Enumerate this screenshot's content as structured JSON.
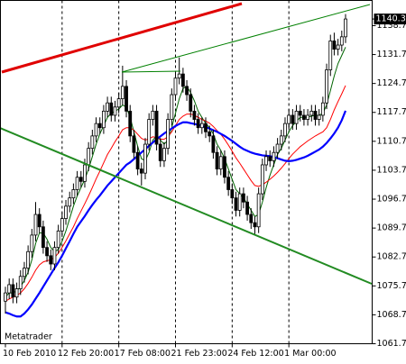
{
  "chart_data": {
    "type": "candlestick",
    "watermark": "Metatrader",
    "categories": [
      "10 Feb 2010",
      null,
      null,
      null,
      null,
      null,
      null,
      null,
      null,
      null,
      null,
      null,
      null,
      null,
      null,
      "12 Feb 20:00",
      null,
      null,
      null,
      null,
      null,
      null,
      null,
      null,
      null,
      null,
      null,
      null,
      null,
      null,
      "17 Feb 08:00",
      null,
      null,
      null,
      null,
      null,
      null,
      null,
      null,
      null,
      null,
      null,
      null,
      null,
      null,
      "21 Feb 23:00",
      null,
      null,
      null,
      null,
      null,
      null,
      null,
      null,
      null,
      null,
      null,
      null,
      null,
      null,
      "24 Feb 12:00",
      null,
      null,
      null,
      null,
      null,
      null,
      null,
      null,
      null,
      null,
      null,
      null,
      null,
      null,
      "1 Mar 00:00",
      null,
      null,
      null,
      null,
      null,
      null,
      null,
      null,
      null,
      null,
      null,
      null,
      null,
      null,
      null
    ],
    "open": [
      1072,
      1074,
      1076,
      1073,
      1075,
      1078,
      1080,
      1084,
      1088,
      1093,
      1090,
      1085,
      1083,
      1081,
      1085,
      1089,
      1092,
      1095,
      1097,
      1099,
      1102,
      1101,
      1105,
      1109,
      1112,
      1115,
      1114,
      1118,
      1120,
      1117,
      1119,
      1121,
      1124,
      1118,
      1112,
      1108,
      1104,
      1103,
      1110,
      1116,
      1118,
      1110,
      1106,
      1109,
      1116,
      1122,
      1126,
      1127,
      1124,
      1122,
      1118,
      1116,
      1114,
      1115,
      1113,
      1112,
      1108,
      1104,
      1107,
      1102,
      1099,
      1097,
      1094,
      1098,
      1096,
      1093,
      1091,
      1090,
      1098,
      1105,
      1107,
      1106,
      1108,
      1110,
      1112,
      1115,
      1117,
      1115,
      1118,
      1117,
      1116,
      1117,
      1118,
      1116,
      1117,
      1120,
      1128,
      1135,
      1133,
      1134,
      1136
    ],
    "high": [
      1075.5,
      1077.5,
      1077.5,
      1076.5,
      1079.5,
      1081.5,
      1085.5,
      1089.5,
      1096,
      1094.5,
      1091.5,
      1086.5,
      1084.5,
      1086.5,
      1090.5,
      1093.5,
      1096.5,
      1098.5,
      1100.5,
      1103.5,
      1103.5,
      1106.5,
      1110.5,
      1113.5,
      1116.5,
      1116.5,
      1119.5,
      1121.5,
      1121.5,
      1120.5,
      1122.5,
      1129,
      1125.5,
      1119.5,
      1113.5,
      1109.5,
      1105.5,
      1111.5,
      1117.5,
      1119.5,
      1119.5,
      1111.5,
      1110.5,
      1117.5,
      1123.5,
      1127.5,
      1131,
      1128.5,
      1125.5,
      1123.5,
      1119.5,
      1117.5,
      1116.5,
      1116.5,
      1114.5,
      1113.5,
      1109.5,
      1108.5,
      1108.5,
      1103.5,
      1100.5,
      1098.5,
      1099.5,
      1099.5,
      1097.5,
      1094.5,
      1092.5,
      1099.5,
      1106.5,
      1108.5,
      1108.5,
      1109.5,
      1111.5,
      1113.5,
      1116.5,
      1118.5,
      1118.5,
      1119.5,
      1119.5,
      1118.5,
      1118.5,
      1119.5,
      1119.5,
      1118.5,
      1121.5,
      1129.5,
      1136.5,
      1137,
      1135.5,
      1137.5,
      1141.5
    ],
    "low": [
      1069,
      1072.5,
      1071.5,
      1071.5,
      1073.5,
      1076.5,
      1078.5,
      1082.5,
      1086.5,
      1088.5,
      1083.5,
      1081.5,
      1079.5,
      1079.5,
      1083.5,
      1087.5,
      1090.5,
      1093.5,
      1095.5,
      1097.5,
      1099.5,
      1099.5,
      1103.5,
      1107.5,
      1110.5,
      1112.5,
      1112.5,
      1116.5,
      1115.5,
      1115.5,
      1117.5,
      1119.5,
      1116.5,
      1110.5,
      1106.5,
      1102.5,
      1100,
      1101.5,
      1108.5,
      1114.5,
      1108.5,
      1104.5,
      1104.5,
      1107.5,
      1114.5,
      1120.5,
      1124.5,
      1122.5,
      1120.5,
      1116.5,
      1114.5,
      1112.5,
      1112.5,
      1111.5,
      1110.5,
      1106.5,
      1102.5,
      1102.5,
      1100.5,
      1097.5,
      1095.5,
      1092.5,
      1092.5,
      1094.5,
      1091.5,
      1089.5,
      1088,
      1088.5,
      1096.5,
      1103.5,
      1104.5,
      1104.5,
      1106.5,
      1108.5,
      1110.5,
      1113.5,
      1113.5,
      1113.5,
      1115.5,
      1114.5,
      1114.5,
      1115.5,
      1114.5,
      1114.5,
      1115.5,
      1118.5,
      1126.5,
      1131.5,
      1131.5,
      1132.5,
      1134.5
    ],
    "close": [
      1074,
      1076,
      1073,
      1075,
      1078,
      1080,
      1084,
      1088,
      1093,
      1090,
      1085,
      1083,
      1081,
      1085,
      1089,
      1092,
      1095,
      1097,
      1099,
      1102,
      1101,
      1105,
      1109,
      1112,
      1115,
      1114,
      1118,
      1120,
      1117,
      1119,
      1121,
      1124,
      1118,
      1112,
      1108,
      1104,
      1103,
      1110,
      1116,
      1118,
      1110,
      1106,
      1109,
      1116,
      1122,
      1126,
      1127,
      1124,
      1122,
      1118,
      1116,
      1114,
      1115,
      1113,
      1112,
      1108,
      1104,
      1107,
      1102,
      1099,
      1097,
      1094,
      1098,
      1096,
      1093,
      1091,
      1090,
      1098,
      1105,
      1107,
      1106,
      1108,
      1110,
      1112,
      1115,
      1117,
      1115,
      1118,
      1117,
      1116,
      1117,
      1118,
      1116,
      1117,
      1120,
      1128,
      1135,
      1133,
      1134,
      1136,
      1140.31
    ],
    "overlays": [
      {
        "color": "#006400",
        "width": 1,
        "values": [
          1073,
          1074,
          1074,
          1074.5,
          1075.5,
          1077,
          1079,
          1082,
          1086,
          1088.5,
          1088.5,
          1087,
          1085,
          1084,
          1084.5,
          1086.5,
          1089,
          1092,
          1095,
          1097.5,
          1099.5,
          1101.5,
          1104,
          1107,
          1110,
          1112.5,
          1114.5,
          1116.5,
          1117.5,
          1118,
          1118.5,
          1119.5,
          1119,
          1116.5,
          1113,
          1109.5,
          1106.5,
          1106,
          1108,
          1111,
          1112,
          1111,
          1110,
          1111,
          1114,
          1117.5,
          1121,
          1123.5,
          1124,
          1122.5,
          1120.5,
          1118,
          1116.5,
          1115,
          1114,
          1112.5,
          1110,
          1108.5,
          1106.5,
          1104,
          1101.5,
          1099,
          1098,
          1097,
          1095.5,
          1094,
          1092.5,
          1093,
          1096,
          1099.5,
          1102.5,
          1105,
          1107.5,
          1109,
          1111,
          1113,
          1114.5,
          1115.5,
          1116.5,
          1116.5,
          1116.5,
          1116.8,
          1117,
          1117,
          1117.5,
          1119.5,
          1123,
          1126.5,
          1129.5,
          1131.5,
          1133.5
        ]
      },
      {
        "color": "#ff0000",
        "width": 1,
        "values": [
          1072,
          1072.5,
          1073,
          1073.4,
          1074,
          1075,
          1076.3,
          1077.8,
          1079.5,
          1080.8,
          1081.5,
          1081.8,
          1082,
          1082.6,
          1083.6,
          1085,
          1086.6,
          1088.3,
          1090,
          1092,
          1093.8,
          1095.6,
          1097.5,
          1099.5,
          1101.6,
          1103.5,
          1105.5,
          1107.5,
          1109,
          1110.6,
          1112,
          1113.5,
          1114,
          1114,
          1113.4,
          1112.4,
          1111.4,
          1111,
          1111.3,
          1111.8,
          1111.6,
          1111.2,
          1111.2,
          1111.8,
          1113,
          1114.5,
          1116,
          1116.8,
          1117.3,
          1117.3,
          1117,
          1116.5,
          1116,
          1115.6,
          1115.1,
          1114.3,
          1113.3,
          1112.4,
          1111.2,
          1109.8,
          1108.3,
          1106.7,
          1105.4,
          1104,
          1102.6,
          1101.2,
          1100,
          1099.8,
          1100.2,
          1100.8,
          1101.5,
          1102.3,
          1103.2,
          1104.2,
          1105.3,
          1106.5,
          1107.6,
          1108.5,
          1109.4,
          1110.1,
          1110.8,
          1111.4,
          1112,
          1112.5,
          1113,
          1114,
          1116,
          1118.3,
          1120.3,
          1122.2,
          1124.2
        ]
      },
      {
        "color": "#0000ff",
        "width": 2.2,
        "values": [
          1069.3,
          1069,
          1068.6,
          1068.3,
          1068.3,
          1069,
          1070,
          1071.2,
          1072.6,
          1074,
          1075.5,
          1077,
          1078.5,
          1080,
          1081.4,
          1083,
          1084.8,
          1086.5,
          1088.3,
          1090,
          1091.3,
          1092.6,
          1094,
          1095.3,
          1096.5,
          1097.6,
          1098.8,
          1100,
          1101,
          1102,
          1103,
          1104,
          1105,
          1105.6,
          1106.4,
          1107.2,
          1108,
          1108.8,
          1109.6,
          1110.4,
          1111.2,
          1111.9,
          1112.6,
          1113.2,
          1113.8,
          1114.4,
          1114.9,
          1115.3,
          1115.3,
          1115.1,
          1114.9,
          1114.7,
          1114.4,
          1114.1,
          1113.8,
          1113.4,
          1113,
          1112.5,
          1112,
          1111.4,
          1110.8,
          1110.1,
          1109.4,
          1108.8,
          1108.4,
          1108,
          1107.7,
          1107.5,
          1107.3,
          1107.2,
          1107.1,
          1106.9,
          1106.6,
          1106.3,
          1106,
          1105.9,
          1106,
          1106.2,
          1106.5,
          1106.8,
          1107.2,
          1107.7,
          1108.2,
          1108.7,
          1109.4,
          1110.3,
          1111.4,
          1112.6,
          1114,
          1115.8,
          1118.1
        ]
      }
    ],
    "bull_color": "#ffffff",
    "bear_color": "#000000",
    "x_grid": true,
    "ylim": [
      1061.7,
      1144.8
    ],
    "yticks": [
      {
        "value": 1061.7,
        "label": "1061.70"
      },
      {
        "value": 1068.7,
        "label": "1068.70"
      },
      {
        "value": 1075.7,
        "label": "1075.70"
      },
      {
        "value": 1082.7,
        "label": "1082.70"
      },
      {
        "value": 1089.7,
        "label": "1089.70"
      },
      {
        "value": 1096.7,
        "label": "1096.70"
      },
      {
        "value": 1103.7,
        "label": "1103.70"
      },
      {
        "value": 1110.7,
        "label": "1110.70"
      },
      {
        "value": 1117.7,
        "label": "1117.70"
      },
      {
        "value": 1124.7,
        "label": "1124.70"
      },
      {
        "value": 1131.7,
        "label": "1131.70"
      },
      {
        "value": 1138.7,
        "label": "1138.70"
      }
    ]
  }
}
